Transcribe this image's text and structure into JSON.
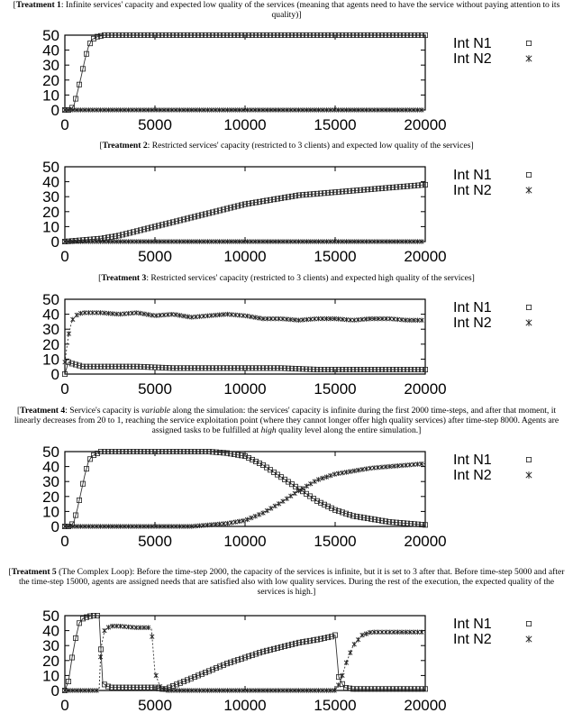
{
  "captions": [
    {
      "tag": "Treatment 1",
      "text": ": Infinite services' capacity and expected low quality of the services (meaning that agents need to have the service without paying attention to its quality)]"
    },
    {
      "tag": "Treatment 2",
      "text": ": Restricted services' capacity (restricted to 3 clients) and expected low quality of the services]"
    },
    {
      "tag": "Treatment 3",
      "text": ": Restricted services' capacity (restricted to 3 clients) and expected high quality of the services]"
    },
    {
      "tag": "Treatment 4",
      "text_a": ": Service's capacity is ",
      "italic_a": "variable",
      "text_b": " along the simulation: the services' capacity is infinite during the first 2000 time-steps, and after that moment, it linearly decreases from 20 to 1, reaching the service exploitation point (where they cannot longer offer high quality services) after time-step 8000. Agents are assigned tasks to be fulfilled at ",
      "italic_b": "high",
      "text_c": " quality level along the entire simulation.]"
    },
    {
      "tag": "Treatment 5",
      "text": " (The Complex Loop): Before the time-step 2000, the capacity of the services is infinite, but it is set to 3 after that. Before time-step 5000 and after the time-step 15000, agents are assigned needs that are satisfied also with low quality services. During the rest of the execution, the expected quality of the services is high.]"
    }
  ],
  "chart_data": [
    {
      "type": "line",
      "title": "",
      "xlabel": "",
      "ylabel": "",
      "xlim": [
        0,
        20000
      ],
      "ylim": [
        0,
        50
      ],
      "xticks": [
        0,
        5000,
        10000,
        15000,
        20000
      ],
      "yticks": [
        0,
        10,
        20,
        30,
        40,
        50
      ],
      "legend_position": "right",
      "series": [
        {
          "name": "Int N1",
          "marker": "square",
          "x": [
            0,
            300,
            500,
            700,
            900,
            1100,
            1300,
            1500,
            1800,
            2200,
            5000,
            10000,
            15000,
            20000
          ],
          "y": [
            0,
            0,
            3,
            12,
            22,
            33,
            42,
            47,
            49,
            50,
            50,
            50,
            50,
            50
          ]
        },
        {
          "name": "Int N2",
          "marker": "star",
          "x": [
            0,
            20000
          ],
          "y": [
            0,
            0
          ]
        }
      ]
    },
    {
      "type": "line",
      "title": "",
      "xlabel": "",
      "ylabel": "",
      "xlim": [
        0,
        20000
      ],
      "ylim": [
        0,
        50
      ],
      "xticks": [
        0,
        5000,
        10000,
        15000,
        20000
      ],
      "yticks": [
        0,
        10,
        20,
        30,
        40,
        50
      ],
      "legend_position": "right",
      "series": [
        {
          "name": "Int N1",
          "marker": "square",
          "x": [
            0,
            1000,
            2000,
            3000,
            4000,
            5000,
            6000,
            7000,
            8000,
            9000,
            10000,
            11000,
            12000,
            13000,
            14000,
            15000,
            16000,
            17000,
            18000,
            19000,
            20000
          ],
          "y": [
            0,
            1,
            2,
            4,
            7,
            10,
            13,
            16,
            19,
            22,
            25,
            27,
            29,
            31,
            32,
            33,
            34,
            35,
            36,
            37,
            38
          ]
        },
        {
          "name": "Int N2",
          "marker": "star",
          "x": [
            0,
            20000
          ],
          "y": [
            0,
            0
          ]
        }
      ]
    },
    {
      "type": "line",
      "title": "",
      "xlabel": "",
      "ylabel": "",
      "xlim": [
        0,
        20000
      ],
      "ylim": [
        0,
        50
      ],
      "xticks": [
        0,
        5000,
        10000,
        15000,
        20000
      ],
      "yticks": [
        0,
        10,
        20,
        30,
        40,
        50
      ],
      "legend_position": "right",
      "series": [
        {
          "name": "Int N1",
          "marker": "square",
          "x": [
            0,
            200,
            400,
            700,
            1000,
            2000,
            4000,
            6000,
            8000,
            10000,
            12000,
            14000,
            16000,
            18000,
            20000
          ],
          "y": [
            0,
            8,
            7,
            6,
            5,
            5,
            5,
            4,
            4,
            4,
            4,
            3,
            3,
            3,
            3
          ]
        },
        {
          "name": "Int N2",
          "marker": "star",
          "x": [
            0,
            200,
            400,
            700,
            1000,
            2000,
            3000,
            4000,
            5000,
            6000,
            7000,
            8000,
            9000,
            10000,
            11000,
            12000,
            13000,
            14000,
            15000,
            16000,
            17000,
            18000,
            19000,
            20000
          ],
          "y": [
            8,
            26,
            36,
            40,
            41,
            41,
            40,
            41,
            39,
            40,
            38,
            39,
            40,
            39,
            37,
            37,
            36,
            37,
            37,
            36,
            37,
            37,
            36,
            36
          ]
        }
      ]
    },
    {
      "type": "line",
      "title": "",
      "xlabel": "",
      "ylabel": "",
      "xlim": [
        0,
        20000
      ],
      "ylim": [
        0,
        50
      ],
      "xticks": [
        0,
        5000,
        10000,
        15000,
        20000
      ],
      "yticks": [
        0,
        10,
        20,
        30,
        40,
        50
      ],
      "legend_position": "right",
      "series": [
        {
          "name": "Int N1",
          "marker": "square",
          "x": [
            0,
            300,
            500,
            700,
            900,
            1100,
            1300,
            1500,
            2000,
            4000,
            6000,
            8000,
            9000,
            10000,
            11000,
            12000,
            13000,
            14000,
            15000,
            16000,
            17000,
            18000,
            19000,
            20000
          ],
          "y": [
            0,
            0,
            3,
            12,
            23,
            34,
            43,
            47,
            50,
            50,
            50,
            50,
            49,
            47,
            41,
            33,
            25,
            17,
            11,
            7,
            5,
            3,
            2,
            1
          ]
        },
        {
          "name": "Int N2",
          "marker": "star",
          "x": [
            0,
            2000,
            4000,
            6000,
            7000,
            8000,
            9000,
            10000,
            11000,
            12000,
            13000,
            14000,
            15000,
            16000,
            17000,
            18000,
            19000,
            20000
          ],
          "y": [
            0,
            0,
            0,
            0,
            0,
            1,
            2,
            4,
            9,
            16,
            24,
            31,
            35,
            37,
            39,
            40,
            41,
            42
          ]
        }
      ]
    },
    {
      "type": "line",
      "title": "",
      "xlabel": "",
      "ylabel": "",
      "xlim": [
        0,
        20000
      ],
      "ylim": [
        0,
        50
      ],
      "xticks": [
        0,
        5000,
        10000,
        15000,
        20000
      ],
      "yticks": [
        0,
        10,
        20,
        30,
        40,
        50
      ],
      "legend_position": "right",
      "series": [
        {
          "name": "Int N1",
          "marker": "square",
          "x": [
            0,
            200,
            400,
            600,
            800,
            1000,
            1200,
            1500,
            1900,
            2100,
            2300,
            2600,
            3000,
            4000,
            5000,
            5300,
            5600,
            6000,
            7000,
            8000,
            9000,
            10000,
            11000,
            12000,
            13000,
            14000,
            14800,
            15000,
            15200,
            15500,
            16000,
            17000,
            18000,
            19000,
            20000
          ],
          "y": [
            0,
            6,
            22,
            35,
            45,
            48,
            49,
            50,
            50,
            5,
            3,
            2,
            2,
            2,
            2,
            1,
            1,
            3,
            8,
            13,
            18,
            22,
            26,
            29,
            32,
            34,
            36,
            37,
            9,
            2,
            1,
            1,
            1,
            1,
            1
          ]
        },
        {
          "name": "Int N2",
          "marker": "star",
          "x": [
            0,
            1900,
            2000,
            2200,
            2500,
            3000,
            4000,
            4800,
            5000,
            5300,
            5600,
            6000,
            8000,
            10000,
            12000,
            14000,
            15000,
            15300,
            15600,
            16000,
            16500,
            17000,
            18000,
            19000,
            20000
          ],
          "y": [
            0,
            0,
            28,
            40,
            43,
            43,
            42,
            42,
            12,
            2,
            0,
            0,
            0,
            0,
            0,
            0,
            0,
            6,
            18,
            30,
            37,
            39,
            39,
            39,
            39
          ]
        }
      ]
    }
  ]
}
